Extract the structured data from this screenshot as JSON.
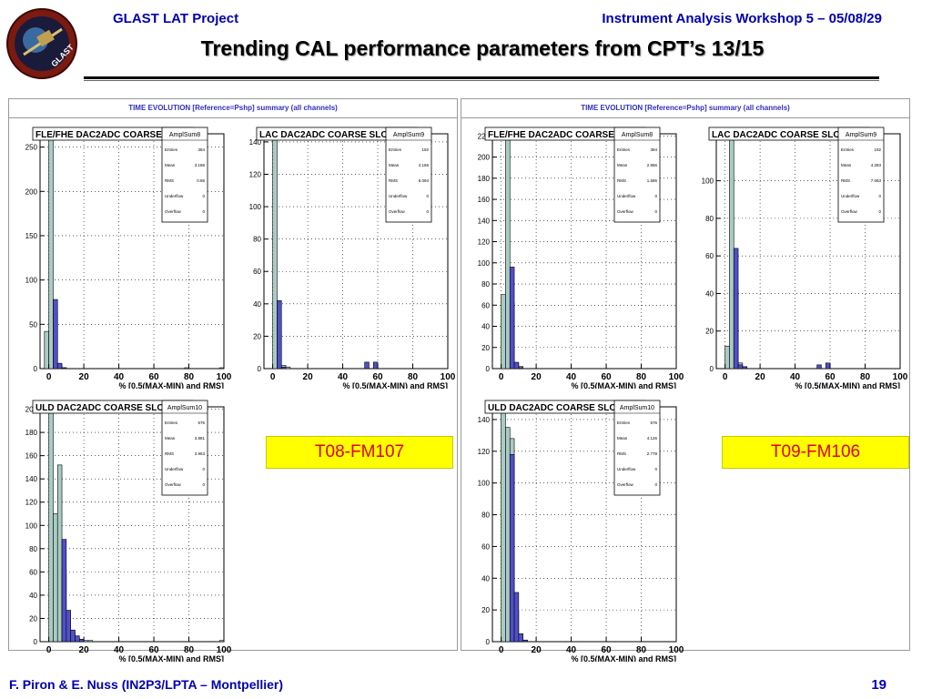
{
  "header": {
    "left": "GLAST LAT Project",
    "right": "Instrument Analysis Workshop 5 – 05/08/29",
    "title": "Trending CAL performance parameters from CPT’s 13/15",
    "logo_text": "GLAST"
  },
  "footer": {
    "authors": "F. Piron & E. Nuss  (IN2P3/LPTA – Montpellier)",
    "page": "19"
  },
  "colors": {
    "header_text": "#0000b3",
    "fill_ref": "#a8ccc4",
    "fill_pshp": "#5050c8",
    "label_bg": "#ffff00",
    "label_text": "#e00000"
  },
  "canvases": [
    {
      "title": "TIME EVOLUTION [Reference=Pshp] summary (all channels)",
      "label": "T08-FM107"
    },
    {
      "title": "TIME EVOLUTION [Reference=Pshp] summary (all channels)",
      "label": "T09-FM106"
    }
  ],
  "chart_data": [
    {
      "type": "bar",
      "canvas": 0,
      "slot": 0,
      "title": "FLE/FHE DAC2ADC COARSE SLOPE",
      "xlabel": "% [0.5(MAX-MIN) and RMS]",
      "xlim": [
        -5,
        100
      ],
      "ylim": [
        0,
        265
      ],
      "yticks": [
        0,
        50,
        100,
        150,
        200,
        250
      ],
      "xticks": [
        0,
        20,
        40,
        60,
        80,
        100
      ],
      "bin_width": 2.5,
      "bin_start": -2.5,
      "series": [
        {
          "name": "ref",
          "values": [
            42,
            265,
            62,
            3,
            1,
            0,
            0,
            0,
            0,
            0,
            0,
            0,
            0,
            0,
            0,
            0,
            0,
            0,
            0,
            0,
            0,
            0,
            0,
            0,
            0,
            0,
            0,
            0,
            0,
            0,
            0,
            0,
            1,
            0,
            0,
            0,
            0,
            0,
            0,
            0,
            1,
            0
          ]
        },
        {
          "name": "pshp",
          "values": [
            0,
            0,
            78,
            6,
            1,
            0,
            0,
            0,
            0,
            0,
            0,
            0,
            0,
            0,
            0,
            0,
            0,
            0,
            0,
            0,
            0,
            0,
            0,
            0,
            0,
            0,
            0,
            0,
            0,
            0,
            0,
            0,
            0,
            0,
            0,
            0,
            0,
            0,
            0,
            0,
            0,
            0
          ]
        }
      ],
      "stats": {
        "name": "AmplSum8",
        "rows": [
          [
            "Entries",
            "384"
          ],
          [
            "Mean",
            "3.186"
          ],
          [
            "RMS",
            "0.86"
          ],
          [
            "Underflow",
            "0"
          ],
          [
            "Overflow",
            "0"
          ]
        ]
      }
    },
    {
      "type": "bar",
      "canvas": 0,
      "slot": 1,
      "title": "LAC DAC2ADC COARSE SLOPE",
      "xlabel": "% [0.5(MAX-MIN) and RMS]",
      "xlim": [
        -5,
        100
      ],
      "ylim": [
        0,
        145
      ],
      "yticks": [
        0,
        20,
        40,
        60,
        80,
        100,
        120,
        140
      ],
      "xticks": [
        0,
        20,
        40,
        60,
        80,
        100
      ],
      "bin_width": 2.5,
      "bin_start": -2.5,
      "series": [
        {
          "name": "ref",
          "values": [
            0,
            145,
            30,
            2,
            1,
            0,
            0,
            0,
            0,
            0,
            0,
            0,
            0,
            0,
            0,
            0,
            0,
            0,
            0,
            0,
            0,
            0,
            0,
            0,
            0,
            0,
            0,
            0,
            0,
            0,
            0,
            0,
            0,
            0,
            0,
            0,
            0,
            0,
            0,
            0,
            0,
            0
          ]
        },
        {
          "name": "pshp",
          "values": [
            0,
            0,
            42,
            1,
            0,
            0,
            0,
            0,
            0,
            0,
            0,
            0,
            0,
            0,
            0,
            0,
            0,
            0,
            0,
            0,
            0,
            0,
            4,
            0,
            4,
            0,
            0,
            0,
            0,
            0,
            0,
            0,
            0,
            0,
            0,
            0,
            0,
            0,
            0,
            0,
            0,
            0
          ]
        }
      ],
      "stats": {
        "name": "AmplSum9",
        "rows": [
          [
            "Entries",
            "192"
          ],
          [
            "Mean",
            "4.166"
          ],
          [
            "RMS",
            "6.094"
          ],
          [
            "Underflow",
            "0"
          ],
          [
            "Overflow",
            "0"
          ]
        ]
      }
    },
    {
      "type": "bar",
      "canvas": 0,
      "slot": 2,
      "title": "ULD DAC2ADC COARSE SLOPE",
      "xlabel": "% [0.5(MAX-MIN) and RMS]",
      "xlim": [
        -5,
        100
      ],
      "ylim": [
        0,
        202
      ],
      "yticks": [
        0,
        20,
        40,
        60,
        80,
        100,
        120,
        140,
        160,
        180,
        200
      ],
      "xticks": [
        0,
        20,
        40,
        60,
        80,
        100
      ],
      "bin_width": 2.5,
      "bin_start": -2.5,
      "series": [
        {
          "name": "ref",
          "values": [
            0,
            202,
            110,
            152,
            62,
            18,
            8,
            4,
            2,
            1,
            1,
            0,
            0,
            0,
            0,
            0,
            0,
            0,
            0,
            0,
            0,
            0,
            0,
            0,
            0,
            0,
            0,
            0,
            0,
            0,
            0,
            0,
            0,
            0,
            0,
            0,
            0,
            0,
            0,
            0,
            1,
            0
          ]
        },
        {
          "name": "pshp",
          "values": [
            0,
            0,
            0,
            0,
            88,
            27,
            10,
            5,
            2,
            0,
            0,
            0,
            0,
            0,
            0,
            0,
            0,
            0,
            0,
            0,
            0,
            0,
            0,
            0,
            0,
            0,
            0,
            0,
            0,
            0,
            0,
            0,
            0,
            0,
            0,
            0,
            0,
            0,
            0,
            0,
            0,
            0
          ]
        }
      ],
      "stats": {
        "name": "AmplSum10",
        "rows": [
          [
            "Entries",
            "576"
          ],
          [
            "Mean",
            "3.881"
          ],
          [
            "RMS",
            "3.963"
          ],
          [
            "Underflow",
            "0"
          ],
          [
            "Overflow",
            "0"
          ]
        ]
      }
    },
    {
      "type": "bar",
      "canvas": 1,
      "slot": 0,
      "title": "FLE/FHE DAC2ADC COARSE SLOPE",
      "xlabel": "% [0.5(MAX-MIN) and RMS]",
      "xlim": [
        -5,
        100
      ],
      "ylim": [
        0,
        222
      ],
      "yticks": [
        0,
        20,
        40,
        60,
        80,
        100,
        120,
        140,
        160,
        180,
        200,
        220
      ],
      "xticks": [
        0,
        20,
        40,
        60,
        80,
        100
      ],
      "bin_width": 2.5,
      "bin_start": -2.5,
      "series": [
        {
          "name": "ref",
          "values": [
            0,
            70,
            222,
            62,
            5,
            2,
            0,
            0,
            0,
            0,
            0,
            0,
            0,
            0,
            0,
            0,
            0,
            0,
            0,
            0,
            0,
            0,
            0,
            0,
            0,
            0,
            0,
            0,
            0,
            0,
            0,
            0,
            0,
            0,
            0,
            0,
            0,
            0,
            0,
            0,
            0,
            0
          ]
        },
        {
          "name": "pshp",
          "values": [
            0,
            0,
            0,
            96,
            6,
            1,
            0,
            0,
            0,
            0,
            0,
            0,
            0,
            0,
            0,
            0,
            0,
            0,
            0,
            0,
            0,
            0,
            0,
            0,
            0,
            0,
            0,
            0,
            0,
            0,
            0,
            0,
            0,
            0,
            0,
            0,
            0,
            0,
            0,
            0,
            0,
            0
          ]
        }
      ],
      "stats": {
        "name": "AmplSum8",
        "rows": [
          [
            "Entries",
            "384"
          ],
          [
            "Mean",
            "2.966"
          ],
          [
            "RMS",
            "1.586"
          ],
          [
            "Underflow",
            "0"
          ],
          [
            "Overflow",
            "0"
          ]
        ]
      }
    },
    {
      "type": "bar",
      "canvas": 1,
      "slot": 1,
      "title": "LAC DAC2ADC COARSE SLOPE",
      "xlabel": "% [0.5(MAX-MIN) and RMS]",
      "xlim": [
        -5,
        100
      ],
      "ylim": [
        0,
        125
      ],
      "yticks": [
        0,
        20,
        40,
        60,
        80,
        100
      ],
      "xticks": [
        0,
        20,
        40,
        60,
        80,
        100
      ],
      "bin_width": 2.5,
      "bin_start": -2.5,
      "series": [
        {
          "name": "ref",
          "values": [
            0,
            12,
            125,
            42,
            3,
            1,
            0,
            0,
            0,
            0,
            0,
            0,
            0,
            0,
            0,
            0,
            0,
            0,
            0,
            0,
            0,
            0,
            0,
            0,
            0,
            0,
            0,
            0,
            0,
            0,
            0,
            0,
            0,
            0,
            0,
            0,
            0,
            0,
            0,
            0,
            0,
            0
          ]
        },
        {
          "name": "pshp",
          "values": [
            0,
            0,
            0,
            64,
            2,
            1,
            0,
            0,
            0,
            0,
            0,
            0,
            0,
            0,
            0,
            0,
            0,
            0,
            0,
            0,
            0,
            0,
            2,
            0,
            3,
            0,
            0,
            0,
            0,
            0,
            0,
            0,
            0,
            0,
            0,
            0,
            0,
            0,
            0,
            0,
            0,
            0
          ]
        }
      ],
      "stats": {
        "name": "AmplSum9",
        "rows": [
          [
            "Entries",
            "192"
          ],
          [
            "Mean",
            "4.283"
          ],
          [
            "RMS",
            "7.063"
          ],
          [
            "Underflow",
            "0"
          ],
          [
            "Overflow",
            "0"
          ]
        ]
      }
    },
    {
      "type": "bar",
      "canvas": 1,
      "slot": 2,
      "title": "ULD DAC2ADC COARSE SLOPE",
      "xlabel": "% [0.5(MAX-MIN) and RMS]",
      "xlim": [
        -5,
        100
      ],
      "ylim": [
        0,
        148
      ],
      "yticks": [
        0,
        20,
        40,
        60,
        80,
        100,
        120,
        140
      ],
      "xticks": [
        0,
        20,
        40,
        60,
        80,
        100
      ],
      "bin_width": 2.5,
      "bin_start": -2.5,
      "series": [
        {
          "name": "ref",
          "values": [
            0,
            148,
            135,
            128,
            20,
            4,
            1,
            0,
            0,
            0,
            0,
            0,
            0,
            0,
            0,
            0,
            0,
            0,
            0,
            0,
            0,
            0,
            0,
            0,
            0,
            0,
            0,
            0,
            0,
            0,
            0,
            0,
            0,
            0,
            0,
            0,
            0,
            0,
            0,
            0,
            0,
            0
          ]
        },
        {
          "name": "pshp",
          "values": [
            0,
            0,
            0,
            118,
            31,
            5,
            1,
            0,
            0,
            0,
            0,
            0,
            0,
            0,
            0,
            0,
            0,
            0,
            0,
            0,
            0,
            0,
            0,
            0,
            0,
            0,
            0,
            0,
            0,
            0,
            0,
            0,
            0,
            0,
            0,
            0,
            0,
            0,
            0,
            0,
            0,
            0
          ]
        }
      ],
      "stats": {
        "name": "AmplSum10",
        "rows": [
          [
            "Entries",
            "576"
          ],
          [
            "Mean",
            "4.126"
          ],
          [
            "RMS",
            "2.779"
          ],
          [
            "Underflow",
            "0"
          ],
          [
            "Overflow",
            "0"
          ]
        ]
      }
    }
  ]
}
